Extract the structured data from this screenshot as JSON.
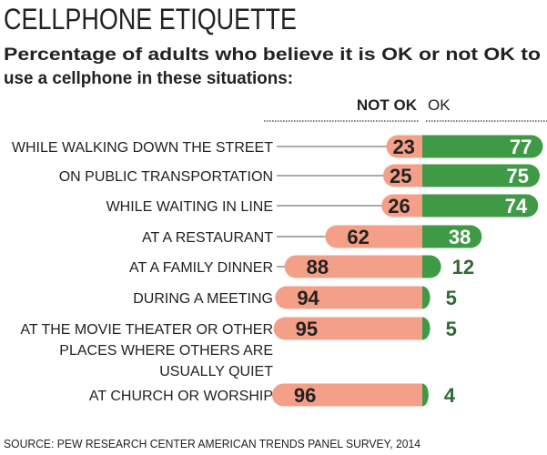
{
  "chart_data": {
    "type": "bar",
    "orientation": "horizontal-diverging",
    "title": "CELLPHONE ETIQUETTE",
    "subtitle": "Percentage of adults who believe it is OK or not OK to use a cellphone in these situations:",
    "source": "SOURCE:  PEW RESEARCH CENTER AMERICAN TRENDS PANEL SURVEY, 2014",
    "categories": [
      [
        "WHILE WALKING DOWN THE STREET"
      ],
      [
        "ON PUBLIC TRANSPORTATION"
      ],
      [
        "WHILE WAITING IN LINE"
      ],
      [
        "AT A RESTAURANT"
      ],
      [
        "AT A FAMILY DINNER"
      ],
      [
        "DURING A MEETING"
      ],
      [
        "AT THE MOVIE THEATER OR OTHER",
        "PLACES WHERE OTHERS ARE",
        "USUALLY QUIET"
      ],
      [
        "AT CHURCH OR WORSHIP"
      ]
    ],
    "series": [
      {
        "name": "NOT OK",
        "color": "#f4a088",
        "values": [
          23,
          25,
          26,
          62,
          88,
          94,
          95,
          96
        ]
      },
      {
        "name": "OK",
        "color": "#3f9a45",
        "values": [
          77,
          75,
          74,
          38,
          12,
          5,
          5,
          4
        ]
      }
    ],
    "xlim": [
      0,
      100
    ],
    "grid": false
  }
}
